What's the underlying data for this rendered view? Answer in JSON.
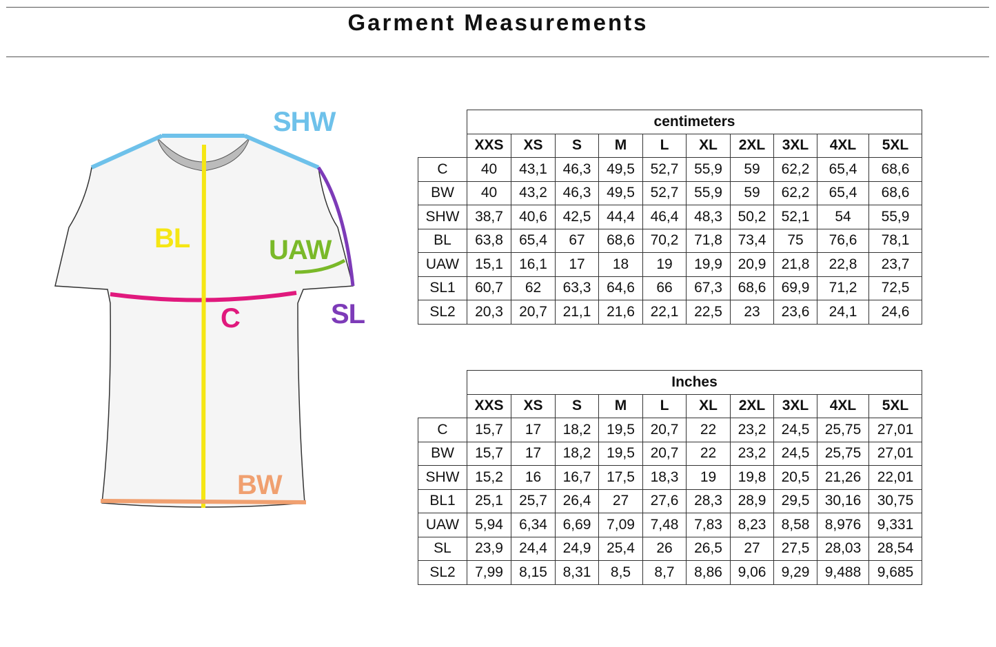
{
  "title": "Garment Measurements",
  "diagram": {
    "labels": {
      "SHW": "SHW",
      "BL": "BL",
      "UAW": "UAW",
      "C": "C",
      "SL": "SL",
      "BW": "BW"
    },
    "colors": {
      "SHW": "#6ec1ea",
      "BL": "#f5e614",
      "UAW": "#7ab929",
      "C": "#e0197d",
      "SL": "#7d3bb8",
      "BW": "#f0a070"
    }
  },
  "sizes": [
    "XXS",
    "XS",
    "S",
    "M",
    "L",
    "XL",
    "2XL",
    "3XL",
    "4XL",
    "5XL"
  ],
  "tables": [
    {
      "unit": "centimeters",
      "rows": [
        {
          "label": "C",
          "values": [
            "40",
            "43,1",
            "46,3",
            "49,5",
            "52,7",
            "55,9",
            "59",
            "62,2",
            "65,4",
            "68,6"
          ]
        },
        {
          "label": "BW",
          "values": [
            "40",
            "43,2",
            "46,3",
            "49,5",
            "52,7",
            "55,9",
            "59",
            "62,2",
            "65,4",
            "68,6"
          ]
        },
        {
          "label": "SHW",
          "values": [
            "38,7",
            "40,6",
            "42,5",
            "44,4",
            "46,4",
            "48,3",
            "50,2",
            "52,1",
            "54",
            "55,9"
          ]
        },
        {
          "label": "BL",
          "values": [
            "63,8",
            "65,4",
            "67",
            "68,6",
            "70,2",
            "71,8",
            "73,4",
            "75",
            "76,6",
            "78,1"
          ]
        },
        {
          "label": "UAW",
          "values": [
            "15,1",
            "16,1",
            "17",
            "18",
            "19",
            "19,9",
            "20,9",
            "21,8",
            "22,8",
            "23,7"
          ]
        },
        {
          "label": "SL1",
          "values": [
            "60,7",
            "62",
            "63,3",
            "64,6",
            "66",
            "67,3",
            "68,6",
            "69,9",
            "71,2",
            "72,5"
          ]
        },
        {
          "label": "SL2",
          "values": [
            "20,3",
            "20,7",
            "21,1",
            "21,6",
            "22,1",
            "22,5",
            "23",
            "23,6",
            "24,1",
            "24,6"
          ]
        }
      ]
    },
    {
      "unit": "Inches",
      "rows": [
        {
          "label": "C",
          "values": [
            "15,7",
            "17",
            "18,2",
            "19,5",
            "20,7",
            "22",
            "23,2",
            "24,5",
            "25,75",
            "27,01"
          ]
        },
        {
          "label": "BW",
          "values": [
            "15,7",
            "17",
            "18,2",
            "19,5",
            "20,7",
            "22",
            "23,2",
            "24,5",
            "25,75",
            "27,01"
          ]
        },
        {
          "label": "SHW",
          "values": [
            "15,2",
            "16",
            "16,7",
            "17,5",
            "18,3",
            "19",
            "19,8",
            "20,5",
            "21,26",
            "22,01"
          ]
        },
        {
          "label": "BL1",
          "values": [
            "25,1",
            "25,7",
            "26,4",
            "27",
            "27,6",
            "28,3",
            "28,9",
            "29,5",
            "30,16",
            "30,75"
          ]
        },
        {
          "label": "UAW",
          "values": [
            "5,94",
            "6,34",
            "6,69",
            "7,09",
            "7,48",
            "7,83",
            "8,23",
            "8,58",
            "8,976",
            "9,331"
          ]
        },
        {
          "label": "SL",
          "values": [
            "23,9",
            "24,4",
            "24,9",
            "25,4",
            "26",
            "26,5",
            "27",
            "27,5",
            "28,03",
            "28,54"
          ]
        },
        {
          "label": "SL2",
          "values": [
            "7,99",
            "8,15",
            "8,31",
            "8,5",
            "8,7",
            "8,86",
            "9,06",
            "9,29",
            "9,488",
            "9,685"
          ]
        }
      ]
    }
  ]
}
